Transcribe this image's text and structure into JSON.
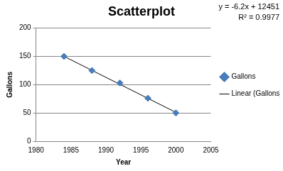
{
  "chart_data": {
    "type": "scatter",
    "title": "Scatterplot",
    "x_label": "Year",
    "y_label": "Gallons",
    "annotations": [
      "y = -6.2x + 12451",
      "R² = 0.9977"
    ],
    "series": [
      {
        "name": "Gallons",
        "color": "#4a7ebb",
        "marker": "diamond",
        "x": [
          1984,
          1988,
          1992,
          1996,
          2000
        ],
        "values": [
          150,
          125,
          103,
          76,
          50
        ]
      },
      {
        "name": "Linear (Gallons)",
        "type": "line",
        "color": "#000000",
        "marker": "none",
        "line_style": "solid",
        "x": [
          1984,
          2000
        ],
        "values": [
          150,
          51
        ]
      }
    ],
    "xlim": [
      1980,
      2005
    ],
    "xticks": [
      1980,
      1985,
      1990,
      1995,
      2000,
      2005
    ],
    "ylim": [
      0,
      200
    ],
    "yticks": [
      0,
      50,
      100,
      150,
      200
    ],
    "grid": true,
    "legend": "right"
  }
}
